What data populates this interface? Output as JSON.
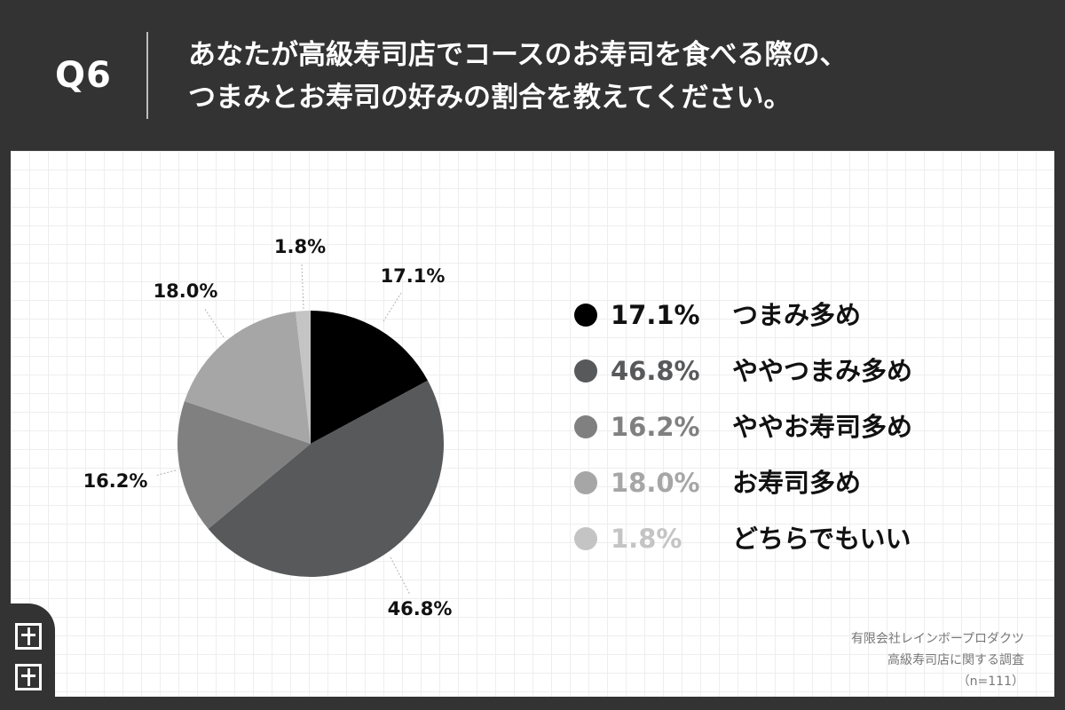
{
  "header": {
    "q_label": "Q6",
    "question_line1": "あなたが高級寿司店でコースのお寿司を食べる際の、",
    "question_line2": "つまみとお寿司の好みの割合を教えてください。"
  },
  "colors": {
    "header_bg": "#333333",
    "panel_bg": "#ffffff",
    "slice_1": "#000000",
    "slice_2": "#58595b",
    "slice_3": "#808080",
    "slice_4": "#a6a6a6",
    "slice_5": "#c4c4c4"
  },
  "chart_data": {
    "type": "pie",
    "categories": [
      "つまみ多め",
      "ややつまみ多め",
      "ややお寿司多め",
      "お寿司多め",
      "どちらでもいい"
    ],
    "values": [
      17.1,
      46.8,
      16.2,
      18.0,
      1.8
    ],
    "value_labels": [
      "17.1%",
      "46.8%",
      "16.2%",
      "18.0%",
      "1.8%"
    ],
    "colors": [
      "#000000",
      "#58595b",
      "#808080",
      "#a6a6a6",
      "#c4c4c4"
    ],
    "legend_placement": "right",
    "grid": true
  },
  "source": {
    "line1": "有限会社レインボープロダクツ",
    "line2": "高級寿司店に関する調査",
    "line3": "（n=111）"
  }
}
